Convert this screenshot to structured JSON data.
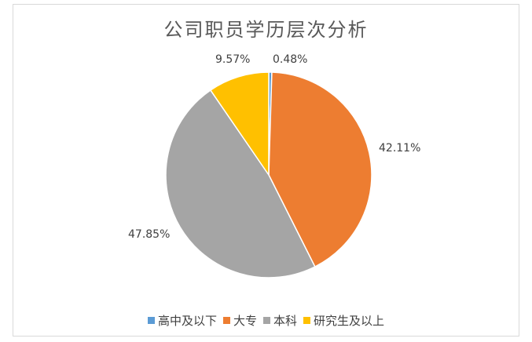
{
  "chart_data": {
    "type": "pie",
    "title": "公司职员学历层次分析",
    "categories": [
      "高中及以下",
      "大专",
      "本科",
      "研究生及以上"
    ],
    "values": [
      0.48,
      42.11,
      47.85,
      9.57
    ],
    "labels": [
      "0.48%",
      "42.11%",
      "47.85%",
      "9.57%"
    ],
    "colors": [
      "#5b9bd5",
      "#ed7d31",
      "#a5a5a5",
      "#ffc000"
    ],
    "legend_position": "bottom"
  }
}
